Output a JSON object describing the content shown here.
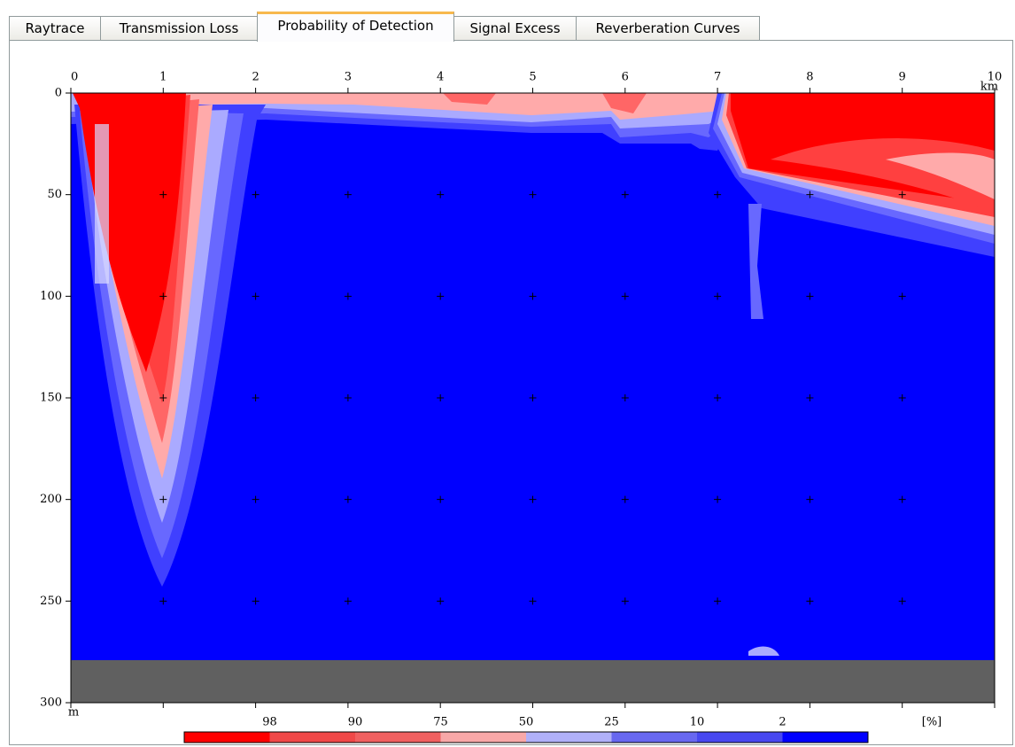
{
  "tabs": [
    "Raytrace",
    "Transmission Loss",
    "Probability of Detection",
    "Signal Excess",
    "Reverberation Curves"
  ],
  "plot": {
    "x_axis": {
      "unit": "km",
      "ticks": [
        0,
        1,
        2,
        3,
        4,
        5,
        6,
        7,
        8,
        9,
        10
      ]
    },
    "y_axis": {
      "unit": "m",
      "ticks": [
        0,
        50,
        100,
        150,
        200,
        250,
        300
      ]
    }
  },
  "legend": {
    "labels": [
      98,
      90,
      75,
      50,
      25,
      10,
      2
    ],
    "unit": "[%]"
  }
}
